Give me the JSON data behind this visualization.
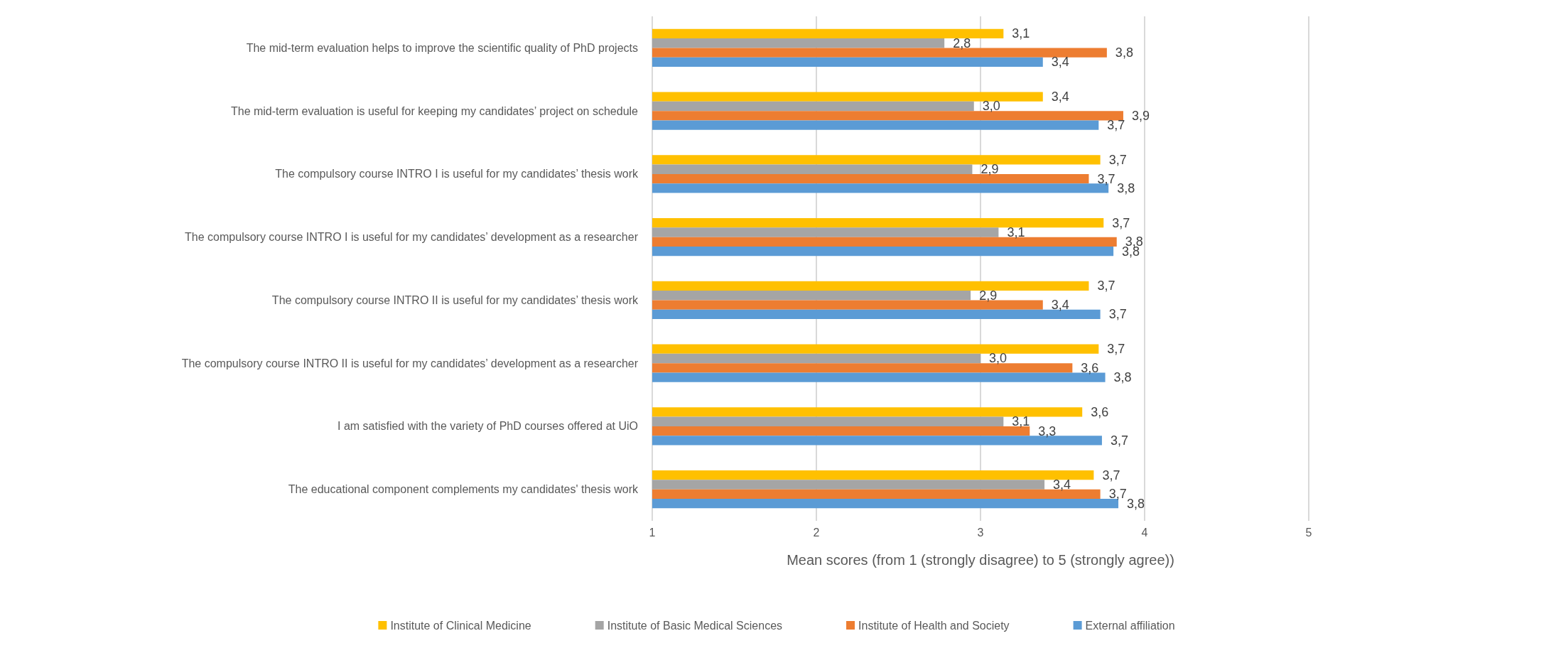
{
  "chart_data": {
    "type": "bar",
    "orientation": "horizontal",
    "xlabel": "Mean scores (from 1 (strongly disagree) to 5 (strongly agree))",
    "categories": [
      "The mid-term evaluation helps to improve the scientific quality of PhD projects",
      "The mid-term evaluation is useful for keeping my candidates’ project on schedule",
      "The compulsory course INTRO I is useful for my candidates’ thesis work",
      "The compulsory course INTRO I is useful for my candidates’ development as a researcher",
      "The compulsory course INTRO II is useful for my candidates’ thesis work",
      "The compulsory course INTRO II is useful for my candidates’ development as a researcher",
      "I am satisfied with the variety of PhD courses offered at UiO",
      "The educational component complements my candidates' thesis work"
    ],
    "series": [
      {
        "name": "Institute of Clinical Medicine",
        "color": "#ffc000",
        "values": [
          3.14,
          3.38,
          3.73,
          3.75,
          3.66,
          3.72,
          3.62,
          3.69
        ],
        "value_labels": [
          "3,1",
          "3,4",
          "3,7",
          "3,7",
          "3,7",
          "3,7",
          "3,6",
          "3,7"
        ]
      },
      {
        "name": "Institute of Basic Medical Sciences",
        "color": "#a5a5a5",
        "values": [
          2.78,
          2.96,
          2.95,
          3.11,
          2.94,
          3.0,
          3.14,
          3.39
        ],
        "value_labels": [
          "2,8",
          "3,0",
          "2,9",
          "3,1",
          "2,9",
          "3,0",
          "3,1",
          "3,4"
        ]
      },
      {
        "name": "Institute of Health and Society",
        "color": "#ed7d31",
        "values": [
          3.77,
          3.87,
          3.66,
          3.83,
          3.38,
          3.56,
          3.3,
          3.73
        ],
        "value_labels": [
          "3,8",
          "3,9",
          "3,7",
          "3,8",
          "3,4",
          "3,6",
          "3,3",
          "3,7"
        ]
      },
      {
        "name": "External affiliation",
        "color": "#5b9bd5",
        "values": [
          3.38,
          3.72,
          3.78,
          3.81,
          3.73,
          3.76,
          3.74,
          3.84
        ],
        "value_labels": [
          "3,4",
          "3,7",
          "3,8",
          "3,8",
          "3,7",
          "3,8",
          "3,7",
          "3,8"
        ]
      }
    ],
    "xlim": [
      1,
      5
    ],
    "xticks": [
      1,
      2,
      3,
      4,
      5
    ],
    "grid": "x",
    "legend": "bottom"
  }
}
